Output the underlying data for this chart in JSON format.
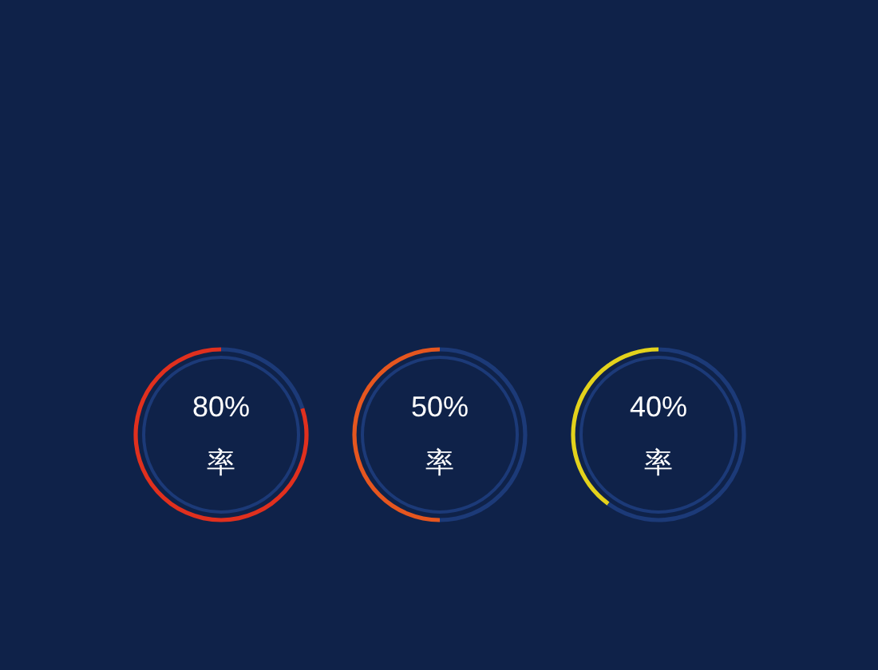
{
  "chart_data": [
    {
      "type": "donut",
      "title": "率",
      "categories": [
        null,
        null
      ],
      "values": [
        80,
        20
      ],
      "colors": [
        "#e0301e",
        "#1c3a78"
      ],
      "value_labels": [
        "80%",
        null
      ]
    },
    {
      "type": "donut",
      "title": "率",
      "categories": [
        null,
        null
      ],
      "values": [
        50,
        50
      ],
      "colors": [
        "#e5561f",
        "#1c3a78"
      ],
      "value_labels": [
        "50%",
        null
      ]
    },
    {
      "type": "donut",
      "title": "率",
      "categories": [
        null,
        null
      ],
      "values": [
        40,
        60
      ],
      "colors": [
        "#e3d21c",
        "#1c3a78"
      ],
      "value_labels": [
        "40%",
        null
      ]
    }
  ]
}
